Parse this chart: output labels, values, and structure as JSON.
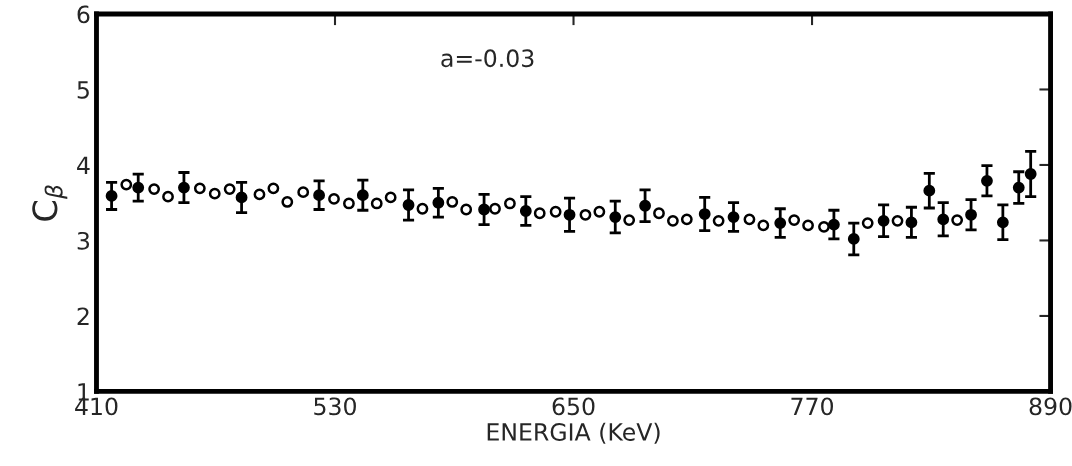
{
  "chart_data": {
    "type": "scatter",
    "xlabel": "ENERGIA (KeV)",
    "ylabel": "C$_{β}$",
    "annotations": [
      "a=-0.03"
    ],
    "xlim": [
      410,
      890
    ],
    "xticks": [
      410,
      530,
      650,
      770,
      890
    ],
    "ylim": [
      1,
      6
    ],
    "yticks": [
      1,
      2,
      3,
      4,
      5,
      6
    ],
    "marker": "circle",
    "grid": false,
    "legend": false,
    "series": [
      {
        "color": "#000000",
        "x": [
          417.6,
          431,
          454,
          483,
          522,
          544,
          567,
          582,
          605,
          626,
          648,
          671,
          686,
          716,
          730.5,
          754,
          781,
          791,
          806,
          820,
          829,
          836,
          850,
          858,
          866,
          874,
          880
        ],
        "values": [
          3.59,
          3.7,
          3.7,
          3.57,
          3.6,
          3.6,
          3.47,
          3.5,
          3.41,
          3.39,
          3.34,
          3.31,
          3.46,
          3.35,
          3.31,
          3.23,
          3.21,
          3.02,
          3.26,
          3.24,
          3.66,
          3.28,
          3.34,
          3.79,
          3.24,
          3.7,
          3.88
        ],
        "errors": [
          0.18,
          0.18,
          0.2,
          0.2,
          0.19,
          0.2,
          0.2,
          0.19,
          0.2,
          0.19,
          0.22,
          0.21,
          0.21,
          0.22,
          0.19,
          0.19,
          0.19,
          0.21,
          0.21,
          0.2,
          0.23,
          0.22,
          0.2,
          0.2,
          0.23,
          0.21,
          0.3
        ]
      },
      {
        "color": "#000000",
        "x": [
          425,
          439,
          446,
          462,
          469.5,
          477,
          492,
          499,
          506,
          514,
          529.5,
          537,
          551,
          558,
          574,
          589,
          596,
          610.5,
          618,
          633,
          641,
          656,
          663,
          678,
          693,
          700,
          707,
          723,
          738.5,
          745.5,
          761,
          768,
          776,
          798,
          813,
          843
        ],
        "values": [
          3.74,
          3.68,
          3.58,
          3.69,
          3.62,
          3.68,
          3.61,
          3.69,
          3.51,
          3.64,
          3.55,
          3.49,
          3.49,
          3.57,
          3.42,
          3.51,
          3.41,
          3.42,
          3.49,
          3.36,
          3.38,
          3.34,
          3.38,
          3.27,
          3.36,
          3.26,
          3.28,
          3.26,
          3.28,
          3.2,
          3.27,
          3.2,
          3.18,
          3.23,
          3.26,
          3.27
        ]
      }
    ]
  }
}
